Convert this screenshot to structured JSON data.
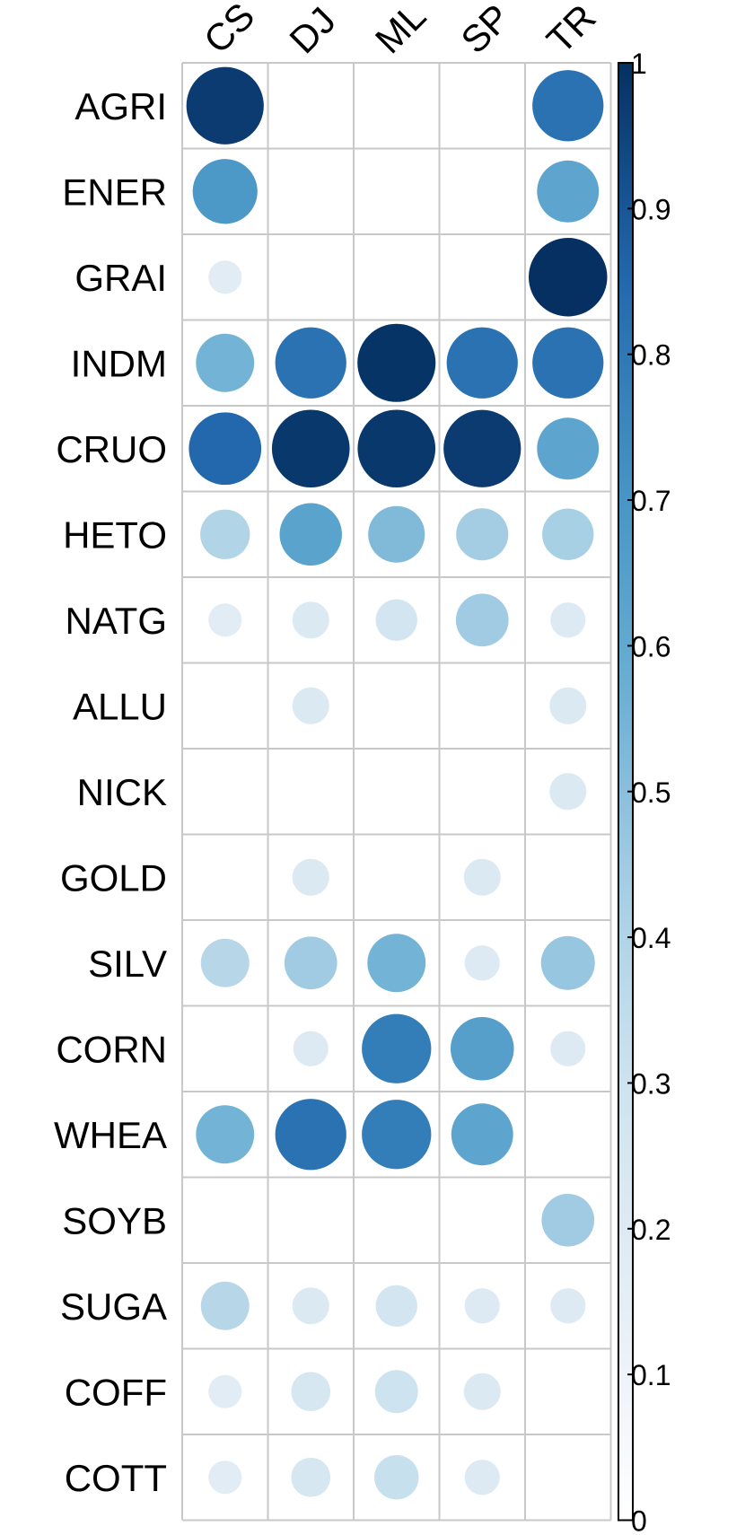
{
  "chart_data": {
    "type": "heatmap",
    "style": "correlation-circles",
    "columns": [
      "CS",
      "DJ",
      "ML",
      "SP",
      "TR"
    ],
    "rows": [
      "AGRI",
      "ENER",
      "GRAI",
      "INDM",
      "CRUO",
      "HETO",
      "NATG",
      "ALLU",
      "NICK",
      "GOLD",
      "SILV",
      "CORN",
      "WHEA",
      "SOYB",
      "SUGA",
      "COFF",
      "COTT"
    ],
    "values": [
      [
        0.97,
        null,
        null,
        null,
        0.82
      ],
      [
        0.68,
        null,
        null,
        null,
        0.62
      ],
      [
        0.18,
        null,
        null,
        null,
        1.0
      ],
      [
        0.55,
        0.82,
        0.99,
        0.82,
        0.82
      ],
      [
        0.85,
        0.98,
        0.98,
        0.97,
        0.62
      ],
      [
        0.4,
        0.63,
        0.52,
        0.44,
        0.43
      ],
      [
        0.18,
        0.22,
        0.28,
        0.45,
        0.2
      ],
      [
        null,
        0.22,
        null,
        null,
        0.22
      ],
      [
        null,
        null,
        null,
        null,
        0.22
      ],
      [
        null,
        0.22,
        null,
        0.22,
        null
      ],
      [
        0.38,
        0.45,
        0.55,
        0.2,
        0.47
      ],
      [
        null,
        0.2,
        0.78,
        0.65,
        0.2
      ],
      [
        0.55,
        0.82,
        0.78,
        0.62,
        null
      ],
      [
        null,
        null,
        null,
        null,
        0.45
      ],
      [
        0.38,
        0.22,
        0.28,
        0.2,
        0.2
      ],
      [
        0.18,
        0.25,
        0.3,
        0.22,
        null
      ],
      [
        0.18,
        0.25,
        0.32,
        0.2,
        null
      ]
    ],
    "colorbar": {
      "range": [
        0,
        1
      ],
      "ticks": [
        "0",
        "0.1",
        "0.2",
        "0.3",
        "0.4",
        "0.5",
        "0.6",
        "0.7",
        "0.8",
        "0.9",
        "1"
      ],
      "color_low": "#ffffff",
      "color_high": "#053061"
    },
    "grid": true,
    "legend": "right"
  },
  "colors": {
    "grid_line": "#c8c8c8",
    "colorscale": [
      "#ffffff",
      "#e6eef5",
      "#d1e5f0",
      "#a9d0e5",
      "#6aaed3",
      "#4393c3",
      "#2166ac",
      "#053061"
    ]
  }
}
